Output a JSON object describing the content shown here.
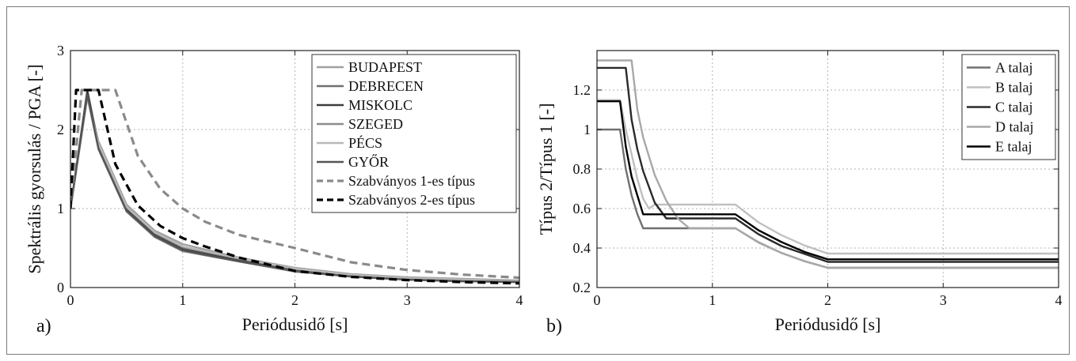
{
  "colors": {
    "budapest": "#a0a0a0",
    "debrecen": "#707070",
    "miskolc": "#3c3c3c",
    "szeged": "#8c8c8c",
    "pecs": "#b8b8b8",
    "gyor": "#555555",
    "szabv1": "#8a8a8a",
    "szabv2": "#000000",
    "a_talaj": "#707070",
    "b_talaj": "#c0c0c0",
    "c_talaj": "#2a2a2a",
    "d_talaj": "#a8a8a8",
    "e_talaj": "#000000"
  },
  "chart_data": [
    {
      "type": "line",
      "panel_letter": "a)",
      "xlabel": "Periódusidő [s]",
      "ylabel": "Spektrális gyorsulás / PGA [-]",
      "xlim": [
        0,
        4
      ],
      "ylim": [
        0,
        3
      ],
      "xticks": [
        "0",
        "1",
        "2",
        "3",
        "4"
      ],
      "yticks": [
        "0",
        "1",
        "2",
        "3"
      ],
      "grid": true,
      "legend_position": "top-right",
      "series": [
        {
          "name": "BUDAPEST",
          "color_key": "budapest",
          "dash": "solid",
          "x": [
            0,
            0.15,
            0.25,
            0.5,
            0.75,
            1.0,
            1.5,
            2.0,
            2.5,
            3.0,
            3.5,
            4.0
          ],
          "y": [
            1.0,
            2.45,
            1.85,
            1.05,
            0.72,
            0.55,
            0.38,
            0.25,
            0.17,
            0.13,
            0.11,
            0.09
          ]
        },
        {
          "name": "DEBRECEN",
          "color_key": "debrecen",
          "dash": "solid",
          "x": [
            0,
            0.15,
            0.25,
            0.5,
            0.75,
            1.0,
            1.5,
            2.0,
            2.5,
            3.0,
            3.5,
            4.0
          ],
          "y": [
            1.0,
            2.5,
            1.8,
            1.0,
            0.68,
            0.5,
            0.35,
            0.22,
            0.15,
            0.11,
            0.09,
            0.07
          ]
        },
        {
          "name": "MISKOLC",
          "color_key": "miskolc",
          "dash": "solid",
          "x": [
            0,
            0.15,
            0.25,
            0.5,
            0.75,
            1.0,
            1.5,
            2.0,
            2.5,
            3.0,
            3.5,
            4.0
          ],
          "y": [
            1.0,
            2.48,
            1.78,
            0.98,
            0.66,
            0.48,
            0.34,
            0.21,
            0.14,
            0.1,
            0.08,
            0.07
          ]
        },
        {
          "name": "SZEGED",
          "color_key": "szeged",
          "dash": "solid",
          "x": [
            0,
            0.15,
            0.25,
            0.5,
            0.75,
            1.0,
            1.5,
            2.0,
            2.5,
            3.0,
            3.5,
            4.0
          ],
          "y": [
            1.0,
            2.42,
            1.75,
            0.96,
            0.64,
            0.46,
            0.33,
            0.2,
            0.14,
            0.1,
            0.08,
            0.07
          ]
        },
        {
          "name": "PÉCS",
          "color_key": "pecs",
          "dash": "solid",
          "x": [
            0,
            0.15,
            0.25,
            0.5,
            0.75,
            1.0,
            1.5,
            2.0,
            2.5,
            3.0,
            3.5,
            4.0
          ],
          "y": [
            1.0,
            2.4,
            1.82,
            1.02,
            0.7,
            0.52,
            0.37,
            0.24,
            0.16,
            0.12,
            0.1,
            0.08
          ]
        },
        {
          "name": "GYŐR",
          "color_key": "gyor",
          "dash": "solid",
          "x": [
            0,
            0.15,
            0.25,
            0.5,
            0.75,
            1.0,
            1.5,
            2.0,
            2.5,
            3.0,
            3.5,
            4.0
          ],
          "y": [
            1.0,
            2.44,
            1.76,
            0.97,
            0.65,
            0.47,
            0.33,
            0.21,
            0.14,
            0.1,
            0.08,
            0.07
          ]
        },
        {
          "name": "Szabványos 1-es típus",
          "color_key": "szabv1",
          "dash": "dashed",
          "x": [
            0,
            0.1,
            0.4,
            0.6,
            0.8,
            1.0,
            1.2,
            1.5,
            2.0,
            2.5,
            3.0,
            3.5,
            4.0
          ],
          "y": [
            1.0,
            2.5,
            2.5,
            1.667,
            1.25,
            1.0,
            0.833,
            0.667,
            0.5,
            0.32,
            0.222,
            0.163,
            0.125
          ]
        },
        {
          "name": "Szabványos 2-es típus",
          "color_key": "szabv2",
          "dash": "dashed",
          "x": [
            0,
            0.05,
            0.25,
            0.4,
            0.6,
            0.8,
            1.0,
            1.2,
            1.5,
            2.0,
            2.5,
            3.0,
            3.5,
            4.0
          ],
          "y": [
            1.0,
            2.5,
            2.5,
            1.5625,
            1.04,
            0.78,
            0.625,
            0.52,
            0.38,
            0.21,
            0.135,
            0.094,
            0.069,
            0.053
          ]
        }
      ]
    },
    {
      "type": "line",
      "panel_letter": "b)",
      "xlabel": "Periódusidő [s]",
      "ylabel": "Típus 2/Típus 1 [-]",
      "xlim": [
        0,
        4
      ],
      "ylim": [
        0.2,
        1.4
      ],
      "xticks": [
        "0",
        "1",
        "2",
        "3",
        "4"
      ],
      "yticks": [
        "0.2",
        "0.4",
        "0.6",
        "0.8",
        "1",
        "1.2"
      ],
      "grid": true,
      "legend_position": "top-right",
      "series": [
        {
          "name": "A talaj",
          "color_key": "a_talaj",
          "dash": "solid",
          "x": [
            0,
            0.1,
            0.15,
            0.2,
            0.25,
            0.3,
            0.35,
            0.4,
            0.5,
            0.6,
            1.2,
            1.4,
            1.6,
            1.8,
            2.0,
            4.0
          ],
          "y": [
            1.0,
            1.0,
            1.0,
            1.0,
            0.8,
            0.6667,
            0.5714,
            0.5,
            0.5,
            0.5,
            0.5,
            0.4286,
            0.375,
            0.3333,
            0.3,
            0.3
          ]
        },
        {
          "name": "B talaj",
          "color_key": "b_talaj",
          "dash": "solid",
          "x": [
            0,
            0.15,
            0.2,
            0.25,
            0.35,
            0.4,
            0.45,
            0.5,
            0.6,
            0.8,
            1.2,
            1.4,
            1.6,
            1.8,
            2.0,
            4.0
          ],
          "y": [
            1.15,
            1.15,
            1.15,
            1.0,
            0.75,
            0.65,
            0.6,
            0.62,
            0.62,
            0.62,
            0.62,
            0.53,
            0.465,
            0.413,
            0.372,
            0.372
          ]
        },
        {
          "name": "C talaj",
          "color_key": "c_talaj",
          "dash": "solid",
          "x": [
            0,
            0.2,
            0.25,
            0.3,
            0.35,
            0.4,
            0.5,
            0.6,
            0.7,
            1.2,
            1.4,
            1.6,
            1.8,
            2.0,
            4.0
          ],
          "y": [
            1.3125,
            1.3125,
            1.3125,
            1.05,
            0.9,
            0.79,
            0.63,
            0.55,
            0.55,
            0.55,
            0.47,
            0.41,
            0.37,
            0.33,
            0.33
          ]
        },
        {
          "name": "D talaj",
          "color_key": "d_talaj",
          "dash": "solid",
          "x": [
            0,
            0.3,
            0.35,
            0.4,
            0.5,
            0.6,
            0.7,
            0.8,
            1.2,
            1.4,
            1.6,
            1.8,
            2.0,
            4.0
          ],
          "y": [
            1.35,
            1.35,
            1.1,
            0.96,
            0.77,
            0.64,
            0.55,
            0.5,
            0.5,
            0.43,
            0.375,
            0.333,
            0.3,
            0.3
          ]
        },
        {
          "name": "E talaj",
          "color_key": "e_talaj",
          "dash": "solid",
          "x": [
            0,
            0.1,
            0.15,
            0.2,
            0.25,
            0.3,
            0.4,
            0.5,
            0.6,
            1.2,
            1.4,
            1.6,
            1.8,
            2.0,
            4.0
          ],
          "y": [
            1.143,
            1.143,
            1.143,
            1.143,
            0.914,
            0.762,
            0.571,
            0.571,
            0.571,
            0.571,
            0.49,
            0.43,
            0.38,
            0.343,
            0.343
          ]
        }
      ]
    }
  ]
}
